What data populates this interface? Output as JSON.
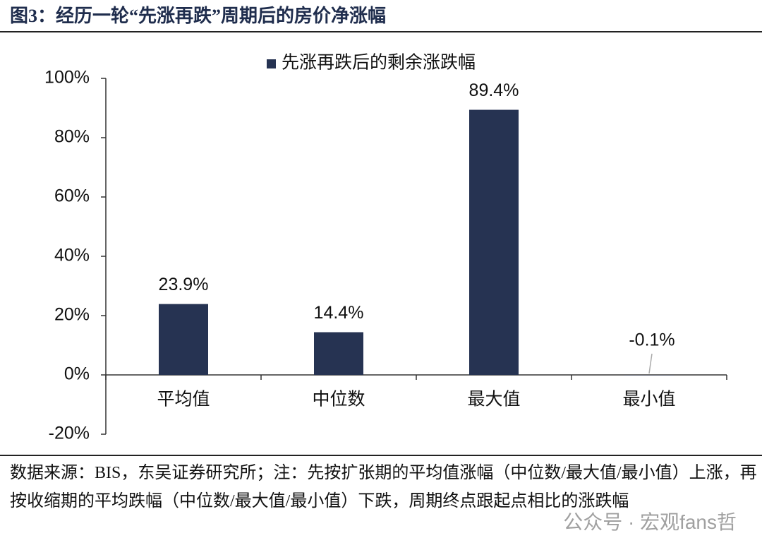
{
  "title": "图3：经历一轮“先涨再跌”周期后的房价净涨幅",
  "chart_data": {
    "type": "bar",
    "categories": [
      "平均值",
      "中位数",
      "最大值",
      "最小值"
    ],
    "series": [
      {
        "name": "先涨再跌后的剩余涨跌幅",
        "color": "#263352",
        "values": [
          23.9,
          14.4,
          89.4,
          -0.1
        ],
        "value_labels": [
          "23.9%",
          "14.4%",
          "89.4%",
          "-0.1%"
        ]
      }
    ],
    "ylim": [
      -20,
      100
    ],
    "yticks": [
      {
        "value": -20,
        "label": "-20%"
      },
      {
        "value": 0,
        "label": "0%"
      },
      {
        "value": 20,
        "label": "20%"
      },
      {
        "value": 40,
        "label": "40%"
      },
      {
        "value": 60,
        "label": "60%"
      },
      {
        "value": 80,
        "label": "80%"
      },
      {
        "value": 100,
        "label": "100%"
      }
    ],
    "legend": "top"
  },
  "note": "数据来源：BIS，东吴证券研究所；注：先按扩张期的平均值涨幅（中位数/最大值/最小值）上涨，再按收缩期的平均跌幅（中位数/最大值/最小值）下跌，周期终点跟起点相比的涨跌幅",
  "watermark": "公众号 · 宏观fans哲"
}
